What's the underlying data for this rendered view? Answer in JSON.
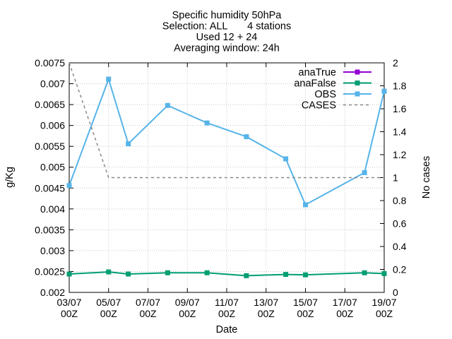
{
  "chart_data": {
    "type": "line",
    "title_lines": [
      "Specific humidity 50hPa",
      "Selection: ALL       4 stations",
      "Used 12 + 24",
      "Averaging window: 24h"
    ],
    "xlabel": "Date",
    "ylabel": "g/Kg",
    "y2label": "No cases",
    "xlim": [
      "2023-07-03 00:00",
      "2023-07-19 00:00"
    ],
    "ylim": [
      0.002,
      0.0075
    ],
    "y2lim": [
      0,
      2
    ],
    "grid": true,
    "legend_position": "top-right",
    "x_ticks": [
      {
        "value": 0,
        "line1": "03/07",
        "line2": "00Z"
      },
      {
        "value": 2,
        "line1": "05/07",
        "line2": "00Z"
      },
      {
        "value": 4,
        "line1": "07/07",
        "line2": "00Z"
      },
      {
        "value": 6,
        "line1": "09/07",
        "line2": "00Z"
      },
      {
        "value": 8,
        "line1": "11/07",
        "line2": "00Z"
      },
      {
        "value": 10,
        "line1": "13/07",
        "line2": "00Z"
      },
      {
        "value": 12,
        "line1": "15/07",
        "line2": "00Z"
      },
      {
        "value": 14,
        "line1": "17/07",
        "line2": "00Z"
      },
      {
        "value": 16,
        "line1": "19/07",
        "line2": "00Z"
      }
    ],
    "y_ticks": [
      "0.002",
      "0.0025",
      "0.003",
      "0.0035",
      "0.004",
      "0.0045",
      "0.005",
      "0.0055",
      "0.006",
      "0.0065",
      "0.007",
      "0.0075"
    ],
    "y2_ticks": [
      "0",
      "0.2",
      "0.4",
      "0.6",
      "0.8",
      "1",
      "1.2",
      "1.4",
      "1.6",
      "1.8",
      "2"
    ],
    "series": [
      {
        "name": "anaTrue",
        "color": "#9400d3",
        "axis": "y",
        "marker": "square",
        "x": [],
        "y": []
      },
      {
        "name": "anaFalse",
        "color": "#009e73",
        "axis": "y",
        "marker": "square",
        "x": [
          0,
          2,
          3,
          5,
          7,
          9,
          11,
          12,
          15,
          16
        ],
        "y": [
          0.00244,
          0.00249,
          0.00244,
          0.00247,
          0.00247,
          0.0024,
          0.00243,
          0.00242,
          0.00247,
          0.00245
        ]
      },
      {
        "name": "OBS",
        "color": "#56b4e9",
        "axis": "y",
        "marker": "square",
        "x": [
          0,
          2,
          3,
          5,
          7,
          9,
          11,
          12,
          15,
          16
        ],
        "y": [
          0.00456,
          0.00711,
          0.00556,
          0.00648,
          0.00606,
          0.00573,
          0.0052,
          0.0041,
          0.00487,
          0.00682
        ]
      },
      {
        "name": "CASES",
        "color": "#888888",
        "axis": "y2",
        "dashed": true,
        "x": [
          0,
          2,
          16
        ],
        "y": [
          2,
          1,
          1
        ]
      }
    ]
  }
}
